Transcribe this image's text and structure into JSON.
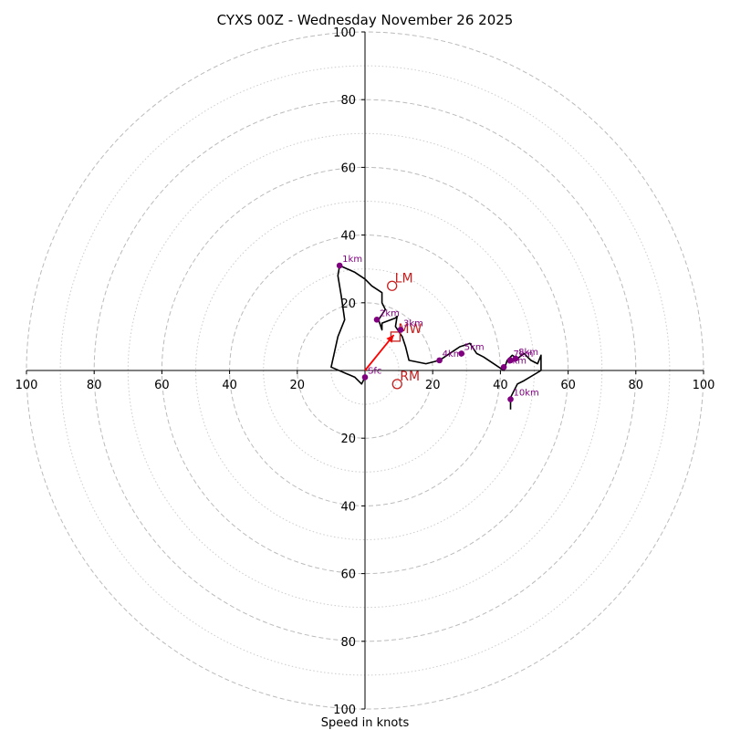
{
  "chart_data": {
    "type": "hodograph",
    "title": "CYXS 00Z - Wednesday November 26 2025",
    "xlabel": "Speed in knots",
    "units": "knots",
    "range": [
      -100,
      100
    ],
    "major_rings": [
      20,
      40,
      60,
      80,
      100
    ],
    "minor_rings": [
      10,
      30,
      50,
      70,
      90
    ],
    "x_tick_values": [
      -100,
      -80,
      -60,
      -40,
      -20,
      20,
      40,
      60,
      80,
      100
    ],
    "x_tick_labels": [
      "100",
      "80",
      "60",
      "40",
      "20",
      "20",
      "40",
      "60",
      "80",
      "100"
    ],
    "y_tick_values": [
      100,
      80,
      60,
      40,
      20,
      -20,
      -40,
      -60,
      -80,
      -100
    ],
    "y_tick_labels": [
      "100",
      "80",
      "60",
      "40",
      "20",
      "20",
      "40",
      "60",
      "80",
      "100"
    ],
    "colors": {
      "hodograph": "#000000",
      "height_marker": "#800080",
      "storm_motion": "#c81e1e",
      "mean_wind_arrow": "#ff0000",
      "ring": "#bbbbbb"
    },
    "hodograph": [
      [
        0,
        -2
      ],
      [
        -1,
        -4
      ],
      [
        -3,
        -2
      ],
      [
        -10,
        1
      ],
      [
        -8,
        10
      ],
      [
        -6,
        15
      ],
      [
        -7,
        22
      ],
      [
        -8,
        28
      ],
      [
        -7.5,
        31
      ],
      [
        -3,
        29
      ],
      [
        0,
        27
      ],
      [
        2,
        25
      ],
      [
        5,
        23
      ],
      [
        5,
        20
      ],
      [
        6,
        18
      ],
      [
        4,
        15
      ],
      [
        5,
        12
      ],
      [
        5,
        14
      ],
      [
        9,
        15.5
      ],
      [
        9.5,
        16
      ],
      [
        9,
        13
      ],
      [
        11,
        10
      ],
      [
        12,
        7
      ],
      [
        13,
        3
      ],
      [
        18,
        2
      ],
      [
        22,
        3
      ],
      [
        25,
        5
      ],
      [
        28,
        7
      ],
      [
        31,
        8
      ],
      [
        33,
        5
      ],
      [
        35,
        4
      ],
      [
        38,
        2
      ],
      [
        41,
        0
      ],
      [
        42,
        3
      ],
      [
        43.5,
        4.5
      ],
      [
        45,
        3.5
      ],
      [
        47,
        5
      ],
      [
        49,
        3
      ],
      [
        51,
        2
      ],
      [
        52,
        4.5
      ],
      [
        52,
        0
      ],
      [
        47,
        -3
      ],
      [
        45,
        -4
      ],
      [
        43,
        -8
      ],
      [
        43,
        -11.5
      ]
    ],
    "height_markers": [
      {
        "label": "Sfc",
        "u": 0,
        "v": -2
      },
      {
        "label": "1km",
        "u": -7.5,
        "v": 31
      },
      {
        "label": "2km",
        "u": 3.5,
        "v": 15
      },
      {
        "label": "3km",
        "u": 10.5,
        "v": 12
      },
      {
        "label": "4km",
        "u": 22,
        "v": 3
      },
      {
        "label": "5km",
        "u": 28.5,
        "v": 5
      },
      {
        "label": "6km",
        "u": 41,
        "v": 1
      },
      {
        "label": "7km",
        "u": 43,
        "v": 3
      },
      {
        "label": "8km",
        "u": 44.5,
        "v": 3.5
      },
      {
        "label": "10km",
        "u": 43,
        "v": -8.5
      }
    ],
    "storm_motion": [
      {
        "label": "LM",
        "u": 8,
        "v": 25,
        "marker": "circle"
      },
      {
        "label": "RM",
        "u": 9.5,
        "v": -4,
        "marker": "circle"
      },
      {
        "label": "MW",
        "u": 9,
        "v": 10,
        "marker": "square"
      }
    ],
    "mean_wind_arrow": {
      "from": [
        0,
        0
      ],
      "to": [
        8.5,
        10.5
      ]
    }
  }
}
